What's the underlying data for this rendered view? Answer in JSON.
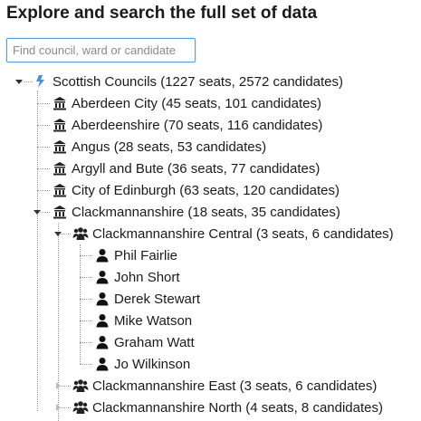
{
  "heading": "Explore and search the full set of data",
  "search": {
    "placeholder": "Find council, ward or candidate"
  },
  "tree": {
    "root": {
      "label": "Scottish Councils (1227 seats, 2572 candidates)",
      "icon": "scotland-flag-icon"
    },
    "councils": [
      {
        "label": "Aberdeen City (45 seats, 101 candidates)",
        "icon": "building-icon"
      },
      {
        "label": "Aberdeenshire (70 seats, 116 candidates)",
        "icon": "building-icon"
      },
      {
        "label": "Angus (28 seats, 53 candidates)",
        "icon": "building-icon"
      },
      {
        "label": "Argyll and Bute (36 seats, 77 candidates)",
        "icon": "building-icon"
      },
      {
        "label": "City of Edinburgh (63 seats, 120 candidates)",
        "icon": "building-icon"
      },
      {
        "label": "Clackmannanshire (18 seats, 35 candidates)",
        "icon": "building-icon"
      }
    ],
    "wards": [
      {
        "label": "Clackmannanshire Central (3 seats, 6 candidates)",
        "icon": "group-icon"
      },
      {
        "label": "Clackmannanshire East (3 seats, 6 candidates)",
        "icon": "group-icon"
      },
      {
        "label": "Clackmannanshire North (4 seats, 8 candidates)",
        "icon": "group-icon"
      }
    ],
    "candidates": [
      {
        "label": "Phil Fairlie",
        "icon": "person-icon"
      },
      {
        "label": "John Short",
        "icon": "person-icon"
      },
      {
        "label": "Derek Stewart",
        "icon": "person-icon"
      },
      {
        "label": "Mike Watson",
        "icon": "person-icon"
      },
      {
        "label": "Graham Watt",
        "icon": "person-icon"
      },
      {
        "label": "Jo Wilkinson",
        "icon": "person-icon"
      }
    ]
  }
}
